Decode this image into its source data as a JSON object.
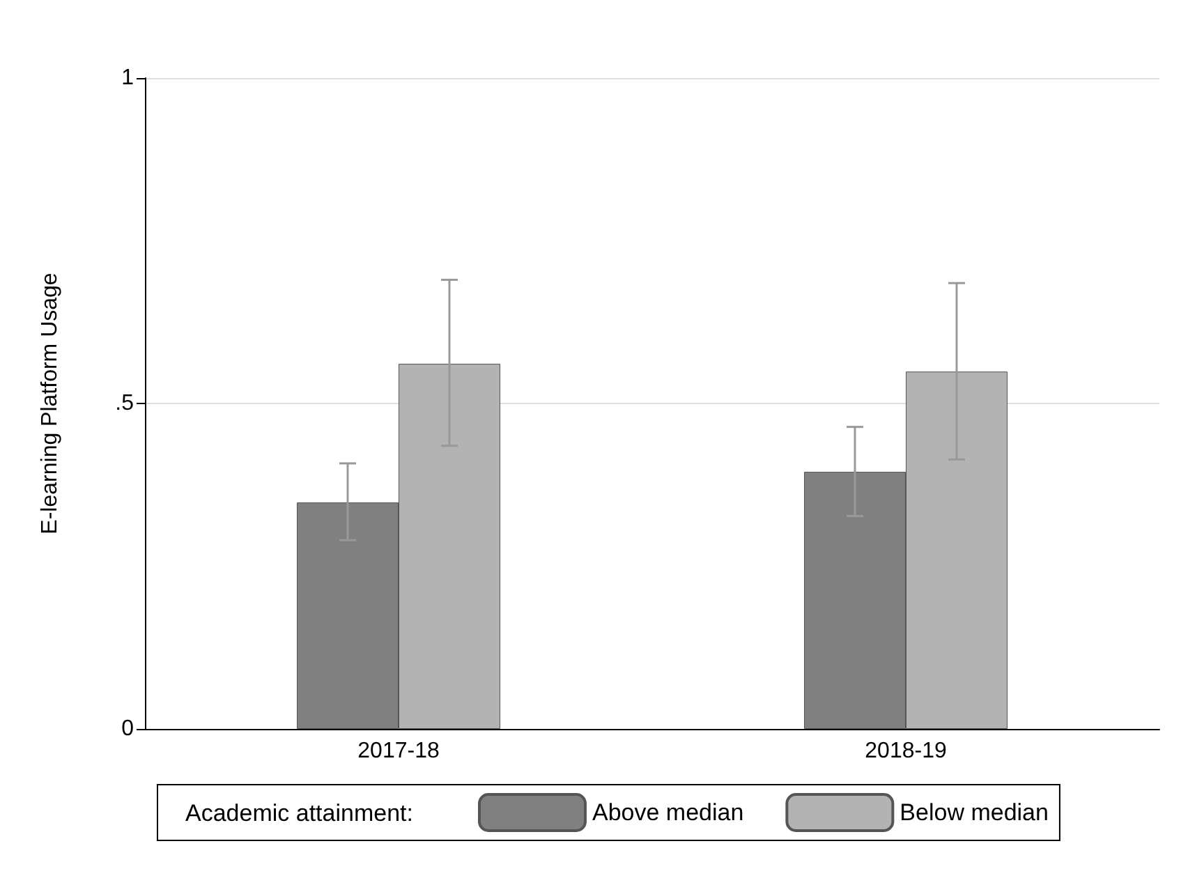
{
  "chart_data": {
    "type": "bar",
    "ylabel": "E-learning Platform Usage",
    "legend_title": "Academic attainment:",
    "categories": [
      "2017-18",
      "2018-19"
    ],
    "series": [
      {
        "name": "Above median",
        "color": "#808080",
        "values": [
          0.348,
          0.395
        ],
        "errors": [
          [
            0.29,
            0.408
          ],
          [
            0.327,
            0.464
          ]
        ]
      },
      {
        "name": "Below median",
        "color": "#b3b3b3",
        "values": [
          0.561,
          0.549
        ],
        "errors": [
          [
            0.435,
            0.69
          ],
          [
            0.414,
            0.685
          ]
        ]
      }
    ],
    "ylim": [
      0,
      1
    ],
    "yticks": [
      0,
      {
        "value": 0.5,
        "label": ".5"
      },
      1
    ],
    "grid": "y",
    "legend": "bottom"
  }
}
